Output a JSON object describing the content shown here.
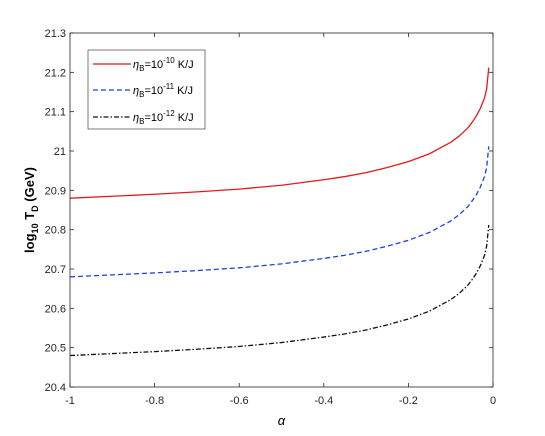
{
  "chart_data": {
    "type": "line",
    "xlabel": "α",
    "ylabel": {
      "base": "log",
      "sub1": "10",
      "mid": " T",
      "sub2": "D",
      "rest": " (GeV)"
    },
    "xlim": [
      -1,
      0
    ],
    "ylim": [
      20.4,
      21.3
    ],
    "xticks": [
      -1,
      -0.8,
      -0.6,
      -0.4,
      -0.2,
      0
    ],
    "xtick_labels": [
      "-1",
      "-0.8",
      "-0.6",
      "-0.4",
      "-0.2",
      "0"
    ],
    "yticks": [
      20.4,
      20.5,
      20.6,
      20.7,
      20.8,
      20.9,
      21,
      21.1,
      21.2,
      21.3
    ],
    "ytick_labels": [
      "20.4",
      "20.5",
      "20.6",
      "20.7",
      "20.8",
      "20.9",
      "21",
      "21.1",
      "21.2",
      "21.3"
    ],
    "grid": false,
    "legend_position": "top-left",
    "x": [
      -1,
      -0.9,
      -0.8,
      -0.7,
      -0.6,
      -0.5,
      -0.4,
      -0.35,
      -0.3,
      -0.25,
      -0.2,
      -0.15,
      -0.1,
      -0.08,
      -0.06,
      -0.05,
      -0.04,
      -0.03,
      -0.02,
      -0.015,
      -0.01
    ],
    "series": [
      {
        "legend": {
          "sym": "η",
          "sub": "B",
          "eq": "=10",
          "sup": "-10",
          "unit": " K/J"
        },
        "color": "#e31a1c",
        "dash": "solid",
        "values": [
          20.88,
          20.885,
          20.89,
          20.896,
          20.903,
          20.913,
          20.927,
          20.935,
          20.945,
          20.958,
          20.973,
          20.993,
          21.022,
          21.038,
          21.058,
          21.072,
          21.088,
          21.108,
          21.135,
          21.158,
          21.212
        ]
      },
      {
        "legend": {
          "sym": "η",
          "sub": "B",
          "eq": "=10",
          "sup": "-11",
          "unit": " K/J"
        },
        "color": "#1f3fe0",
        "dash": "dashed",
        "values": [
          20.68,
          20.685,
          20.69,
          20.696,
          20.703,
          20.713,
          20.727,
          20.735,
          20.745,
          20.758,
          20.773,
          20.793,
          20.822,
          20.838,
          20.858,
          20.872,
          20.888,
          20.908,
          20.935,
          20.958,
          21.012
        ]
      },
      {
        "legend": {
          "sym": "η",
          "sub": "B",
          "eq": "=10",
          "sup": "-12",
          "unit": " K/J"
        },
        "color": "#111111",
        "dash": "dashdot",
        "values": [
          20.48,
          20.485,
          20.49,
          20.496,
          20.503,
          20.513,
          20.527,
          20.535,
          20.545,
          20.558,
          20.573,
          20.593,
          20.622,
          20.638,
          20.658,
          20.672,
          20.688,
          20.708,
          20.735,
          20.758,
          20.812
        ]
      }
    ]
  }
}
